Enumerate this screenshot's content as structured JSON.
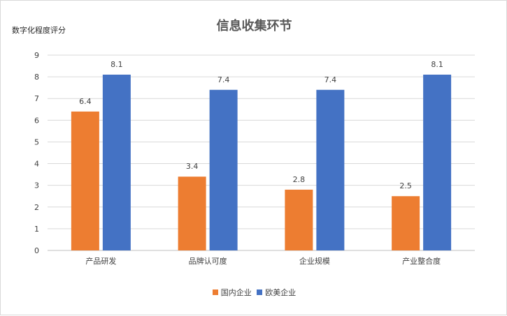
{
  "chart_data": {
    "type": "bar",
    "title": "信息收集环节",
    "ylabel": "数字化程度评分",
    "xlabel": "",
    "categories": [
      "产品研发",
      "品牌认可度",
      "企业规模",
      "产业整合度"
    ],
    "series": [
      {
        "name": "国内企业",
        "values": [
          6.4,
          3.4,
          2.8,
          2.5
        ],
        "color": "#ED7D31"
      },
      {
        "name": "欧美企业",
        "values": [
          8.1,
          7.4,
          7.4,
          8.1
        ],
        "color": "#4472C4"
      }
    ],
    "ylim": [
      0,
      9
    ],
    "yticks": [
      "0",
      "1",
      "2",
      "3",
      "4",
      "5",
      "6",
      "7",
      "8",
      "9"
    ],
    "data_labels": true,
    "grid": true,
    "legend_position": "bottom"
  }
}
